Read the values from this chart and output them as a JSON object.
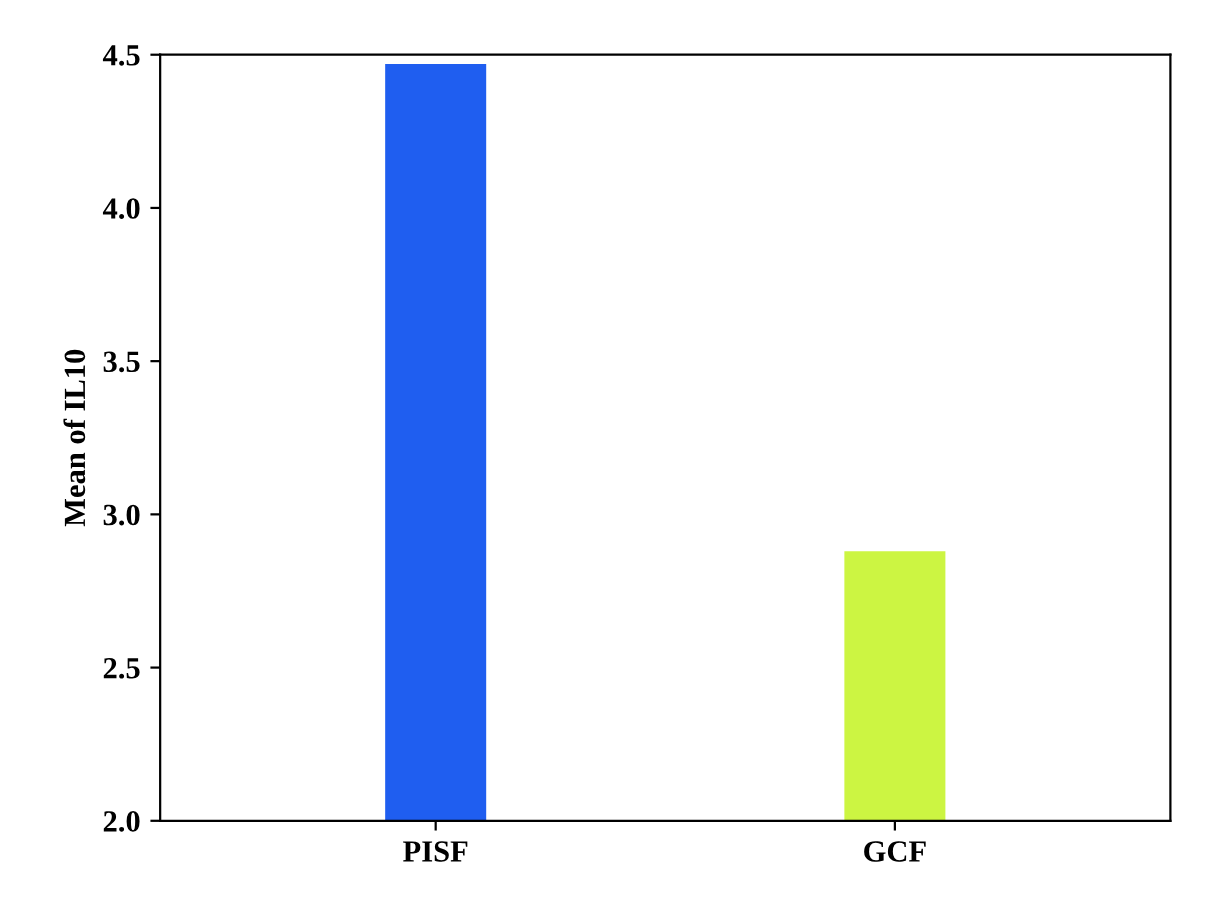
{
  "chart_data": {
    "type": "bar",
    "ylabel": "Mean of IL10",
    "categories": [
      "PISF",
      "GCF"
    ],
    "values": [
      4.47,
      2.88
    ],
    "colors": [
      "#1f5ef0",
      "#ccf542"
    ],
    "ylim": [
      2.0,
      4.5
    ],
    "yticks": [
      {
        "value": 2.0,
        "label": "2.0"
      },
      {
        "value": 2.5,
        "label": "2.5"
      },
      {
        "value": 3.0,
        "label": "3.0"
      },
      {
        "value": 3.5,
        "label": "3.5"
      },
      {
        "value": 4.0,
        "label": "4.0"
      },
      {
        "value": 4.5,
        "label": "4.5"
      }
    ],
    "grid": false,
    "legend": false
  }
}
